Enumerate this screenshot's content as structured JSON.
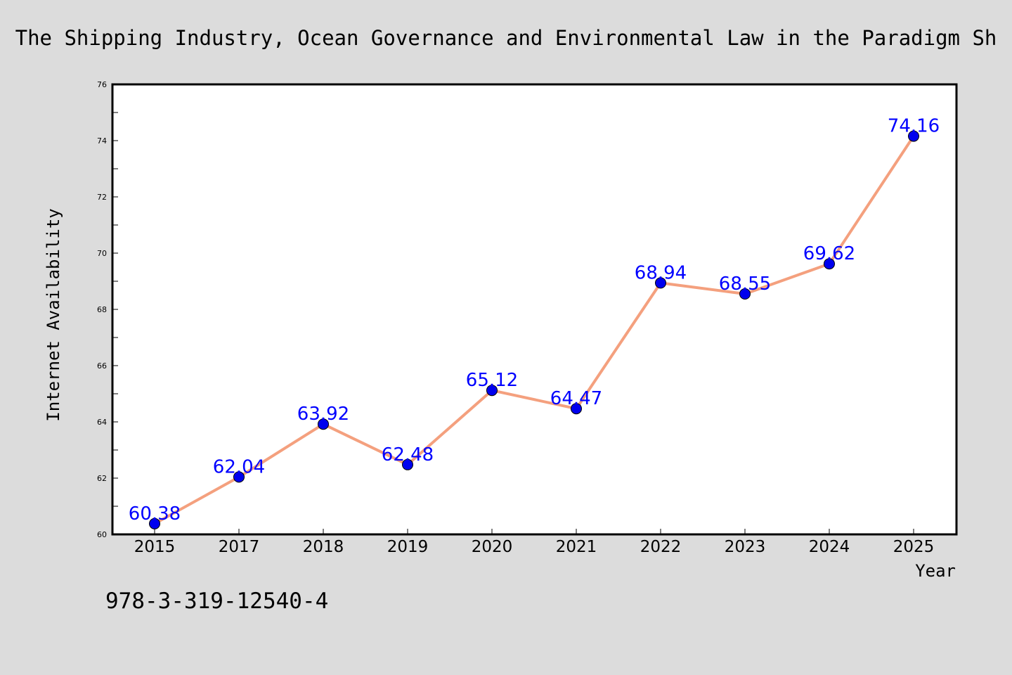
{
  "chart_data": {
    "type": "line",
    "title": "The Shipping Industry, Ocean Governance and Environmental Law in the Paradigm Sh",
    "xlabel": "Year",
    "ylabel": "Internet Availability",
    "categories": [
      "2015",
      "2017",
      "2018",
      "2019",
      "2020",
      "2021",
      "2022",
      "2023",
      "2024",
      "2025"
    ],
    "values": [
      60.38,
      62.04,
      63.92,
      62.48,
      65.12,
      64.47,
      68.94,
      68.55,
      69.62,
      74.16
    ],
    "data_labels": [
      "60.38",
      "62.04",
      "63.92",
      "62.48",
      "65.12",
      "64.47",
      "68.94",
      "68.55",
      "69.62",
      "74.16"
    ],
    "ylim": [
      60,
      76
    ],
    "y_ticks": [
      60,
      62,
      64,
      66,
      68,
      70,
      72,
      74,
      76
    ],
    "grid": false,
    "line_color": "#f4a07e",
    "marker_color": "#0000ee",
    "label_color": "#0000ff"
  },
  "footer_text": "978-3-319-12540-4"
}
